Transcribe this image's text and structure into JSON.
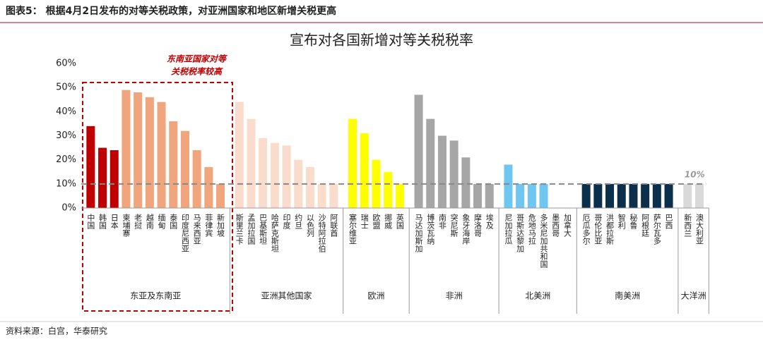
{
  "header": "图表5： 根据4月2日发布的对等关税政策，对亚洲国家和地区新增关税更高",
  "chart_data": {
    "type": "bar",
    "title": "宣布对各国新增对等关税税率",
    "annotation": [
      "东南亚国家对等",
      "关税税率较高"
    ],
    "ylim": [
      0,
      60
    ],
    "yticks": [
      {
        "value": 0,
        "label": "0%"
      },
      {
        "value": 10,
        "label": "10%"
      },
      {
        "value": 20,
        "label": "20%"
      },
      {
        "value": 30,
        "label": "30%"
      },
      {
        "value": 40,
        "label": "40%"
      },
      {
        "value": 50,
        "label": "50%"
      },
      {
        "value": 60,
        "label": "60%"
      }
    ],
    "reference_line": {
      "value": 10,
      "label": "10%"
    },
    "groups": [
      {
        "name": "东亚及东南亚",
        "categories": [
          "中国",
          "韩国",
          "日本",
          "柬埔寨",
          "老挝",
          "越南",
          "缅甸",
          "泰国",
          "印度尼西亚",
          "马来西亚",
          "菲律宾",
          "新加坡"
        ],
        "values": [
          34,
          25,
          24,
          49,
          48,
          46,
          44,
          36,
          32,
          24,
          17,
          10
        ],
        "colors": [
          "#c00000",
          "#c00000",
          "#c00000",
          "#f0a57c",
          "#f0a57c",
          "#f0a57c",
          "#f0a57c",
          "#f0a57c",
          "#f0a57c",
          "#f0a57c",
          "#f0a57c",
          "#f0a57c"
        ]
      },
      {
        "name": "亚洲其他国家",
        "categories": [
          "斯里兰卡",
          "孟加拉国",
          "巴基斯坦",
          "哈萨克斯坦",
          "印度",
          "约旦",
          "以色列",
          "沙特阿拉伯",
          "阿联酋"
        ],
        "values": [
          44,
          37,
          29,
          27,
          26,
          20,
          17,
          10,
          10
        ],
        "colors": [
          "#fadccd",
          "#fadccd",
          "#fadccd",
          "#fadccd",
          "#fadccd",
          "#fadccd",
          "#fadccd",
          "#fadccd",
          "#fadccd"
        ]
      },
      {
        "name": "欧洲",
        "categories": [
          "塞尔维亚",
          "瑞士",
          "欧盟",
          "挪威",
          "英国"
        ],
        "values": [
          37,
          31,
          20,
          15,
          10
        ],
        "colors": [
          "#ffff00",
          "#ffff00",
          "#ffff00",
          "#ffff00",
          "#ffff00"
        ]
      },
      {
        "name": "非洲",
        "categories": [
          "马达加斯加",
          "博茨瓦纳",
          "南非",
          "突尼斯",
          "象牙海岸",
          "摩洛哥",
          "埃及"
        ],
        "values": [
          47,
          37,
          30,
          28,
          21,
          10,
          10
        ],
        "colors": [
          "#a6a6a6",
          "#a6a6a6",
          "#a6a6a6",
          "#a6a6a6",
          "#a6a6a6",
          "#a6a6a6",
          "#a6a6a6"
        ]
      },
      {
        "name": "北美洲",
        "categories": [
          "尼加拉瓜",
          "哥斯达黎加",
          "危地马拉",
          "多米尼加共和国",
          "墨西哥",
          "加拿大"
        ],
        "values": [
          18,
          10,
          10,
          10,
          null,
          null
        ],
        "colors": [
          "#6ec6f1",
          "#6ec6f1",
          "#6ec6f1",
          "#6ec6f1",
          "#6ec6f1",
          "#6ec6f1"
        ]
      },
      {
        "name": "南美洲",
        "categories": [
          "厄瓜多尔",
          "哥伦比亚",
          "洪都拉斯",
          "智利",
          "秘鲁",
          "阿根廷",
          "萨尔瓦多",
          "巴西"
        ],
        "values": [
          10,
          10,
          10,
          10,
          10,
          10,
          10,
          10
        ],
        "colors": [
          "#0c2f4c",
          "#0c2f4c",
          "#0c2f4c",
          "#0c2f4c",
          "#0c2f4c",
          "#0c2f4c",
          "#0c2f4c",
          "#0c2f4c"
        ]
      },
      {
        "name": "大洋洲",
        "categories": [
          "新西兰",
          "澳大利亚"
        ],
        "values": [
          10,
          10
        ],
        "colors": [
          "#d9d9d9",
          "#d9d9d9"
        ]
      }
    ]
  },
  "source": "资料来源：白宫，华泰研究"
}
